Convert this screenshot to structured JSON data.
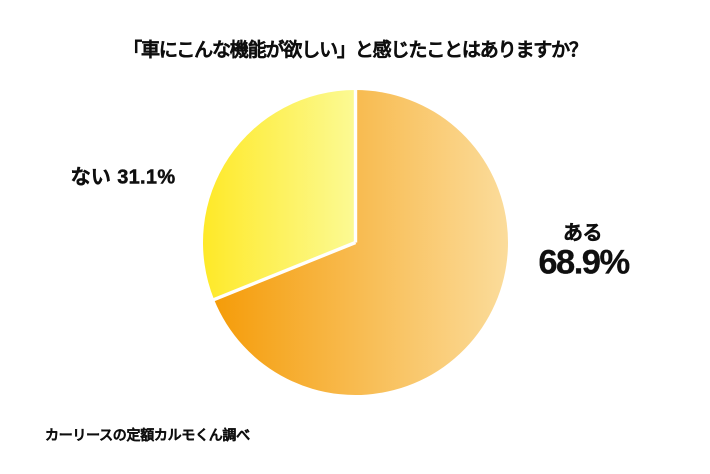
{
  "chart_data": {
    "type": "pie",
    "title": "「車にこんな機能が欲しい」と感じたことはありますか？",
    "slices": [
      {
        "label": "ある",
        "value": 68.9,
        "pct_label": "68.9%",
        "gradient": [
          "#F59C09",
          "#FBDC9B"
        ]
      },
      {
        "label": "ない",
        "value": 31.1,
        "pct_label": "31.1%",
        "gradient": [
          "#FEE928",
          "#FCFA94"
        ]
      }
    ],
    "start_angle_deg": 0,
    "direction": "clockwise",
    "separator_color": "#FFFFFF",
    "background_color": "#FFFFFF",
    "text_color": "#0F0F0F",
    "legend_position": "callout-labels-beside-slices",
    "source_note": "カーリースの定額カルモくん調べ"
  }
}
